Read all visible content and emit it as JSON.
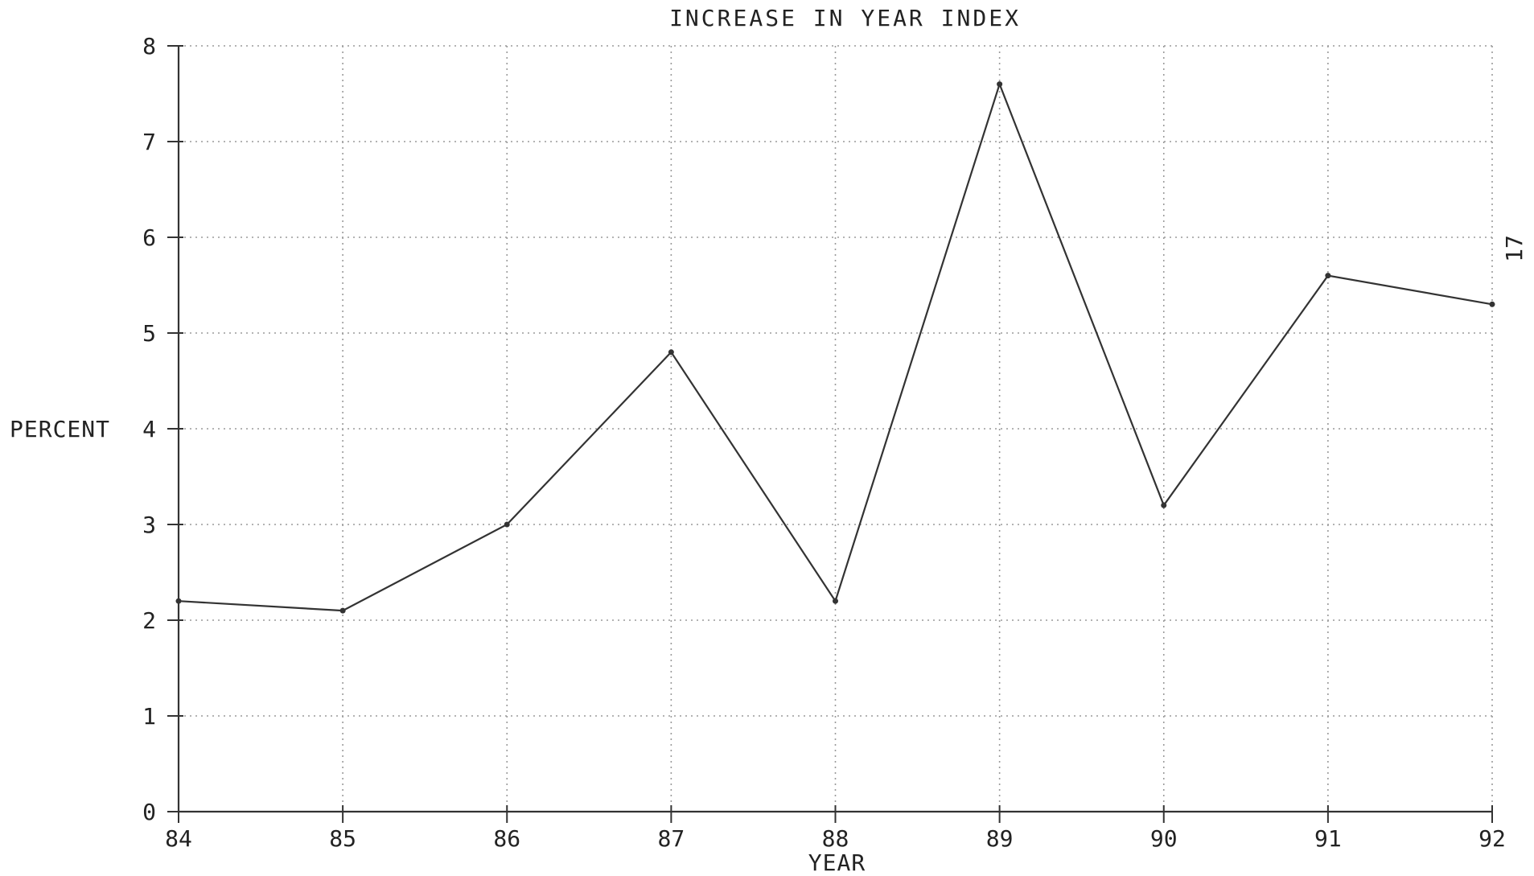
{
  "chart_data": {
    "type": "line",
    "title": "INCREASE IN YEAR INDEX",
    "xlabel": "YEAR",
    "ylabel": "PERCENT",
    "x": [
      "84",
      "85",
      "86",
      "87",
      "88",
      "89",
      "90",
      "91",
      "92"
    ],
    "xlim": [
      84,
      92
    ],
    "ylim": [
      0,
      8
    ],
    "y_ticks": [
      "0",
      "1",
      "2",
      "3",
      "4",
      "5",
      "6",
      "7",
      "8"
    ],
    "grid": true,
    "series": [
      {
        "values": [
          2.2,
          2.1,
          3.0,
          4.8,
          2.2,
          7.6,
          3.2,
          5.6,
          5.3
        ]
      }
    ],
    "side_note": "17",
    "colors": {
      "line": "#333333",
      "grid": "#9a9a9a",
      "text": "#222222"
    }
  }
}
